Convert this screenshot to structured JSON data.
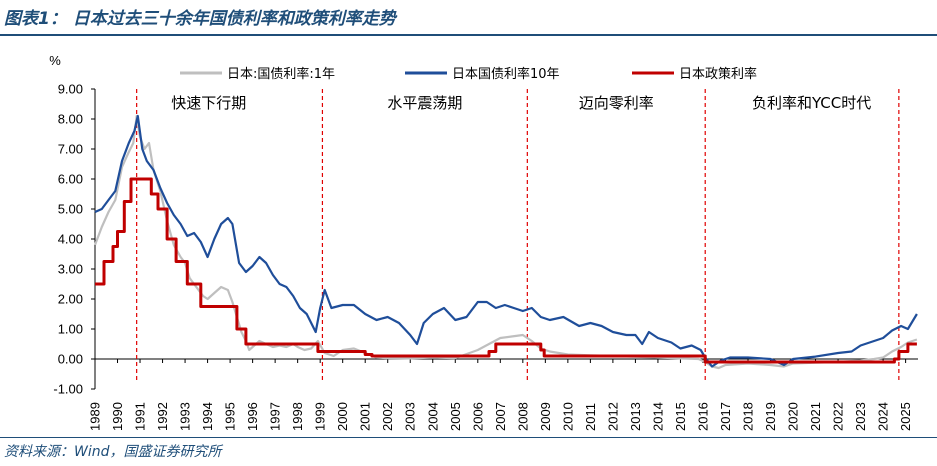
{
  "header": {
    "title": "图表1：  日本过去三十余年国债利率和政策利率走势"
  },
  "footer": {
    "source": "资料来源：Wind，国盛证券研究所"
  },
  "chart_data": {
    "type": "line",
    "ylabel": "%",
    "ylim": [
      -1,
      9
    ],
    "xlim": [
      1989,
      2025.55
    ],
    "y_ticks": [
      "-1.00",
      "0.00",
      "1.00",
      "2.00",
      "3.00",
      "4.00",
      "5.00",
      "6.00",
      "7.00",
      "8.00",
      "9.00"
    ],
    "x_ticks": [
      "1989",
      "1990",
      "1991",
      "1992",
      "1993",
      "1994",
      "1995",
      "1996",
      "1997",
      "1998",
      "1999",
      "2000",
      "2001",
      "2002",
      "2003",
      "2004",
      "2005",
      "2006",
      "2007",
      "2008",
      "2009",
      "2010",
      "2011",
      "2012",
      "2013",
      "2014",
      "2015",
      "2016",
      "2017",
      "2018",
      "2019",
      "2020",
      "2021",
      "2022",
      "2023",
      "2024",
      "2025"
    ],
    "legend_position": "top",
    "eras": [
      {
        "label": "快速下行期",
        "start": 1989,
        "end": 1999.1
      },
      {
        "label": "水平震荡期",
        "start": 1999.1,
        "end": 2008.2
      },
      {
        "label": "迈向零利率",
        "start": 2008.2,
        "end": 2016.1
      },
      {
        "label": "负利率和YCC时代",
        "start": 2016.1,
        "end": 2025.55
      }
    ],
    "dividers": [
      1990.85,
      1999.1,
      2008.2,
      2016.1,
      2024.7
    ],
    "series": [
      {
        "name": "日本:国债利率:1年",
        "color": "#bfbfbf",
        "x": [
          1989.0,
          1989.3,
          1989.6,
          1989.9,
          1990.2,
          1990.5,
          1990.7,
          1990.85,
          1991.0,
          1991.2,
          1991.4,
          1991.6,
          1991.9,
          1992.2,
          1992.5,
          1992.8,
          1993.0,
          1993.2,
          1993.5,
          1993.8,
          1994.0,
          1994.3,
          1994.6,
          1994.9,
          1995.1,
          1995.3,
          1995.5,
          1995.7,
          1995.85,
          1996.0,
          1996.3,
          1996.6,
          1996.9,
          1997.2,
          1997.5,
          1997.8,
          1998.0,
          1998.3,
          1998.6,
          1998.9,
          1999.2,
          1999.6,
          2000.0,
          2000.5,
          2001.0,
          2001.5,
          2002.0,
          2003.0,
          2004.0,
          2005.0,
          2006.0,
          2006.5,
          2007.0,
          2007.5,
          2008.0,
          2008.4,
          2008.8,
          2009.2,
          2010.0,
          2011.0,
          2012.0,
          2013.0,
          2014.0,
          2015.0,
          2015.8,
          2016.1,
          2016.4,
          2016.7,
          2017.0,
          2018.0,
          2019.0,
          2019.6,
          2020.0,
          2021.0,
          2022.0,
          2023.0,
          2023.6,
          2024.0,
          2024.4,
          2024.8,
          2025.1,
          2025.5
        ],
        "values": [
          3.8,
          4.4,
          4.9,
          5.3,
          6.4,
          6.9,
          7.2,
          8.1,
          7.4,
          7.0,
          7.2,
          6.3,
          5.6,
          4.6,
          3.8,
          3.4,
          3.2,
          2.7,
          2.4,
          2.1,
          2.0,
          2.2,
          2.4,
          2.3,
          1.9,
          1.4,
          0.9,
          0.6,
          0.3,
          0.4,
          0.6,
          0.5,
          0.4,
          0.45,
          0.4,
          0.5,
          0.4,
          0.3,
          0.35,
          0.6,
          0.2,
          0.1,
          0.3,
          0.35,
          0.2,
          0.05,
          0.03,
          0.02,
          0.05,
          0.03,
          0.3,
          0.5,
          0.7,
          0.75,
          0.8,
          0.6,
          0.35,
          0.25,
          0.15,
          0.12,
          0.1,
          0.08,
          0.05,
          0.02,
          0.0,
          -0.1,
          -0.25,
          -0.3,
          -0.2,
          -0.15,
          -0.2,
          -0.25,
          -0.15,
          -0.12,
          -0.1,
          -0.05,
          0.0,
          0.05,
          0.25,
          0.4,
          0.55,
          0.65
        ]
      },
      {
        "name": "日本国债利率10年",
        "color": "#1f4e9a",
        "x": [
          1989.0,
          1989.3,
          1989.6,
          1989.9,
          1990.2,
          1990.5,
          1990.75,
          1990.9,
          1991.1,
          1991.3,
          1991.6,
          1991.9,
          1992.2,
          1992.5,
          1992.8,
          1993.1,
          1993.4,
          1993.7,
          1994.0,
          1994.3,
          1994.6,
          1994.9,
          1995.1,
          1995.4,
          1995.7,
          1996.0,
          1996.3,
          1996.6,
          1996.9,
          1997.2,
          1997.5,
          1997.8,
          1998.1,
          1998.4,
          1998.8,
          1999.0,
          1999.2,
          1999.5,
          2000.0,
          2000.5,
          2001.0,
          2001.5,
          2002.0,
          2002.5,
          2003.0,
          2003.3,
          2003.6,
          2004.0,
          2004.5,
          2005.0,
          2005.5,
          2006.0,
          2006.4,
          2006.8,
          2007.2,
          2007.6,
          2008.0,
          2008.4,
          2008.8,
          2009.2,
          2009.8,
          2010.5,
          2011.0,
          2011.5,
          2012.0,
          2012.6,
          2013.0,
          2013.3,
          2013.6,
          2014.0,
          2014.6,
          2015.0,
          2015.5,
          2015.9,
          2016.1,
          2016.4,
          2016.8,
          2017.2,
          2018.0,
          2019.0,
          2019.6,
          2020.0,
          2021.0,
          2022.0,
          2022.6,
          2023.0,
          2023.6,
          2024.0,
          2024.4,
          2024.8,
          2025.1,
          2025.5
        ],
        "values": [
          4.9,
          5.0,
          5.3,
          5.6,
          6.6,
          7.2,
          7.6,
          8.1,
          7.0,
          6.6,
          6.3,
          5.7,
          5.2,
          4.8,
          4.5,
          4.1,
          4.2,
          3.9,
          3.4,
          4.0,
          4.5,
          4.7,
          4.5,
          3.2,
          2.9,
          3.1,
          3.4,
          3.2,
          2.8,
          2.5,
          2.4,
          2.1,
          1.7,
          1.5,
          0.9,
          1.7,
          2.3,
          1.7,
          1.8,
          1.8,
          1.5,
          1.3,
          1.4,
          1.2,
          0.8,
          0.5,
          1.2,
          1.5,
          1.7,
          1.3,
          1.4,
          1.9,
          1.9,
          1.7,
          1.8,
          1.7,
          1.6,
          1.7,
          1.4,
          1.3,
          1.4,
          1.1,
          1.2,
          1.1,
          0.9,
          0.8,
          0.8,
          0.5,
          0.9,
          0.7,
          0.55,
          0.35,
          0.45,
          0.3,
          0.05,
          -0.25,
          -0.05,
          0.05,
          0.05,
          0.0,
          -0.2,
          0.0,
          0.08,
          0.2,
          0.25,
          0.45,
          0.6,
          0.7,
          0.95,
          1.1,
          1.0,
          1.5
        ]
      },
      {
        "name": "日本政策利率",
        "color": "#c00000",
        "step": true,
        "x": [
          1989.0,
          1989.4,
          1989.8,
          1990.0,
          1990.3,
          1990.6,
          1990.9,
          1991.5,
          1991.8,
          1992.2,
          1992.6,
          1993.1,
          1993.7,
          1995.3,
          1995.7,
          1998.9,
          1999.1,
          2000.6,
          2001.0,
          2001.3,
          2006.5,
          2006.8,
          2007.1,
          2008.8,
          2008.95,
          2016.1,
          2024.2,
          2024.5,
          2024.7,
          2025.1,
          2025.5
        ],
        "values": [
          2.5,
          3.25,
          3.75,
          4.25,
          5.25,
          6.0,
          6.0,
          5.5,
          5.0,
          4.0,
          3.25,
          2.5,
          1.75,
          1.0,
          0.5,
          0.25,
          0.25,
          0.25,
          0.15,
          0.1,
          0.25,
          0.5,
          0.5,
          0.3,
          0.1,
          -0.1,
          -0.1,
          0.0,
          0.25,
          0.5,
          0.5
        ]
      }
    ]
  }
}
